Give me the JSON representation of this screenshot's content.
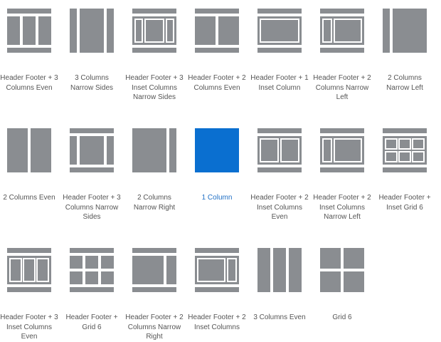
{
  "colors": {
    "block": "#8a8d91",
    "selected_block": "#0a6fd0",
    "label": "#555555",
    "selected_label": "#1f6fc5",
    "background": "#ffffff"
  },
  "layouts": [
    {
      "id": "header-footer-3-columns-even",
      "label": "Header Footer + 3 Columns Even",
      "selected": false
    },
    {
      "id": "3-columns-narrow-sides",
      "label": "3 Columns Narrow Sides",
      "selected": false
    },
    {
      "id": "header-footer-3-inset-columns-narrow-sides",
      "label": "Header Footer + 3 Inset Columns Narrow Sides",
      "selected": false
    },
    {
      "id": "header-footer-2-columns-even",
      "label": "Header Footer + 2 Columns Even",
      "selected": false
    },
    {
      "id": "header-footer-1-inset-column",
      "label": "Header Footer + 1 Inset Column",
      "selected": false
    },
    {
      "id": "header-footer-2-columns-narrow-left",
      "label": "Header Footer + 2 Columns Narrow Left",
      "selected": false
    },
    {
      "id": "2-columns-narrow-left",
      "label": "2 Columns Narrow Left",
      "selected": false
    },
    {
      "id": "2-columns-even",
      "label": "2 Columns Even",
      "selected": false
    },
    {
      "id": "header-footer-3-columns-narrow-sides",
      "label": "Header Footer + 3 Columns Narrow Sides",
      "selected": false
    },
    {
      "id": "2-columns-narrow-right",
      "label": "2 Columns Narrow Right",
      "selected": false
    },
    {
      "id": "1-column",
      "label": "1 Column",
      "selected": true
    },
    {
      "id": "header-footer-2-inset-columns-even",
      "label": "Header Footer + 2 Inset Columns Even",
      "selected": false
    },
    {
      "id": "header-footer-2-inset-columns-narrow-left",
      "label": "Header Footer + 2 Inset Columns Narrow Left",
      "selected": false
    },
    {
      "id": "header-footer-inset-grid-6",
      "label": "Header Footer + Inset Grid 6",
      "selected": false
    },
    {
      "id": "header-footer-3-inset-columns-even",
      "label": "Header Footer + 3 Inset Columns Even",
      "selected": false
    },
    {
      "id": "header-footer-grid-6",
      "label": "Header Footer + Grid 6",
      "selected": false
    },
    {
      "id": "header-footer-2-columns-narrow-right",
      "label": "Header Footer + 2 Columns Narrow Right",
      "selected": false
    },
    {
      "id": "header-footer-2-inset-columns",
      "label": "Header Footer + 2 Inset Columns",
      "selected": false
    },
    {
      "id": "3-columns-even",
      "label": "3 Columns Even",
      "selected": false
    },
    {
      "id": "grid-6",
      "label": "Grid 6",
      "selected": false
    }
  ]
}
